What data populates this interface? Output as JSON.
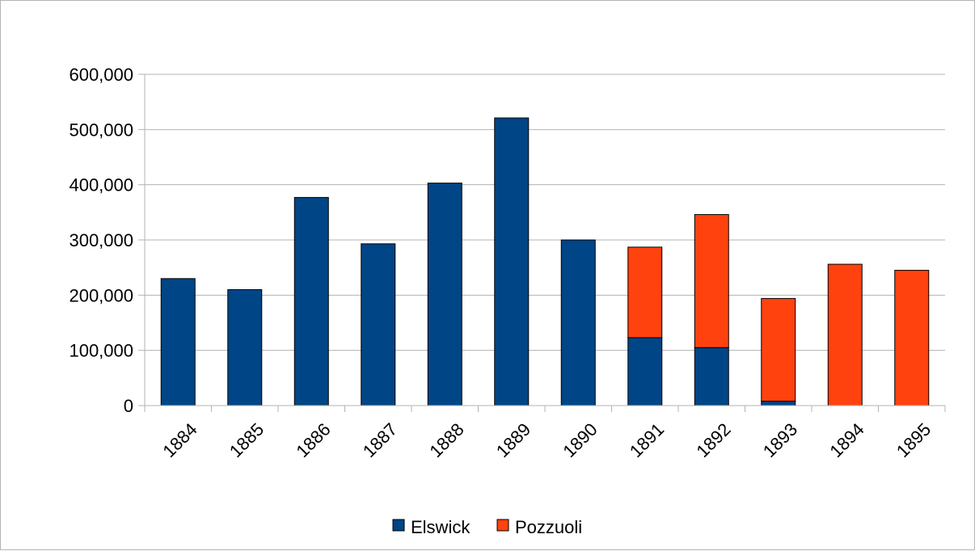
{
  "colors": {
    "elswick": "#004586",
    "pozzuoli": "#ff420e",
    "grid": "#b3b3b3",
    "frame": "#b3b3b3"
  },
  "chart_data": {
    "type": "bar",
    "stacked": true,
    "title": "",
    "xlabel": "",
    "ylabel": "",
    "categories": [
      "1884",
      "1885",
      "1886",
      "1887",
      "1888",
      "1889",
      "1890",
      "1891",
      "1892",
      "1893",
      "1894",
      "1895"
    ],
    "series": [
      {
        "name": "Elswick",
        "values": [
          230000,
          210000,
          377000,
          293000,
          403000,
          521000,
          300000,
          123000,
          105000,
          8000,
          0,
          0
        ]
      },
      {
        "name": "Pozzuoli",
        "values": [
          0,
          0,
          0,
          0,
          0,
          0,
          0,
          164000,
          241000,
          186000,
          256000,
          245000
        ]
      }
    ],
    "ylim": [
      0,
      600000
    ],
    "yticks": [
      "0",
      "100,000",
      "200,000",
      "300,000",
      "400,000",
      "500,000",
      "600,000"
    ],
    "grid": true,
    "legend_position": "bottom"
  }
}
